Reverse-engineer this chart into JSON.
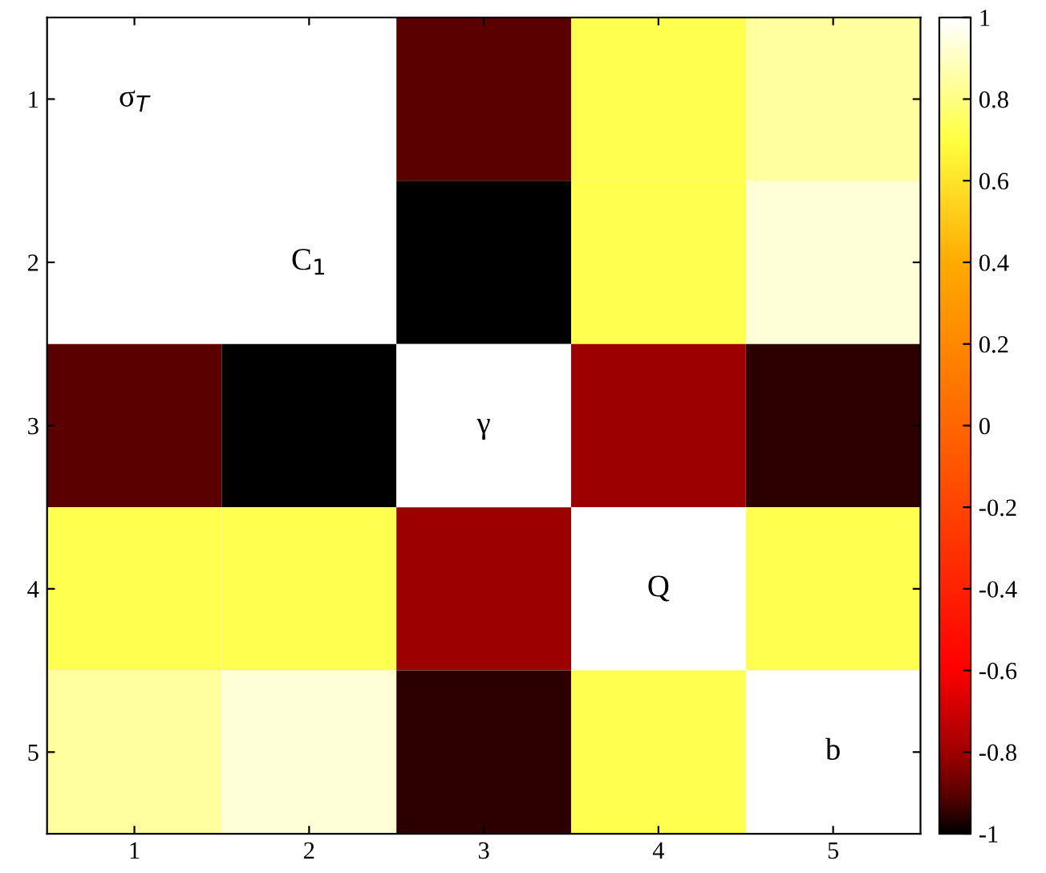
{
  "chart_data": {
    "type": "heatmap",
    "categories": [
      "1",
      "2",
      "3",
      "4",
      "5"
    ],
    "y_categories": [
      "1",
      "2",
      "3",
      "4",
      "5"
    ],
    "cells": [
      [
        1,
        1,
        -0.9,
        0.72,
        0.85
      ],
      [
        1,
        1,
        -1,
        0.72,
        0.93
      ],
      [
        -0.9,
        -1,
        1,
        -0.8,
        -0.95
      ],
      [
        0.72,
        0.72,
        -0.8,
        1,
        0.72
      ],
      [
        0.85,
        0.93,
        -0.95,
        0.72,
        1
      ]
    ],
    "cell_labels": [
      [
        "σ$_{T}$",
        null,
        null,
        null,
        null
      ],
      [
        null,
        "C$_{1}$",
        null,
        null,
        null
      ],
      [
        null,
        null,
        "γ",
        null,
        null
      ],
      [
        null,
        null,
        null,
        "Q",
        null
      ],
      [
        null,
        null,
        null,
        null,
        "b"
      ]
    ],
    "clim": [
      -1,
      1
    ],
    "cticks": [
      -1,
      -0.8,
      -0.6,
      -0.4,
      -0.2,
      0,
      0.2,
      0.4,
      0.6,
      0.8,
      1
    ]
  }
}
